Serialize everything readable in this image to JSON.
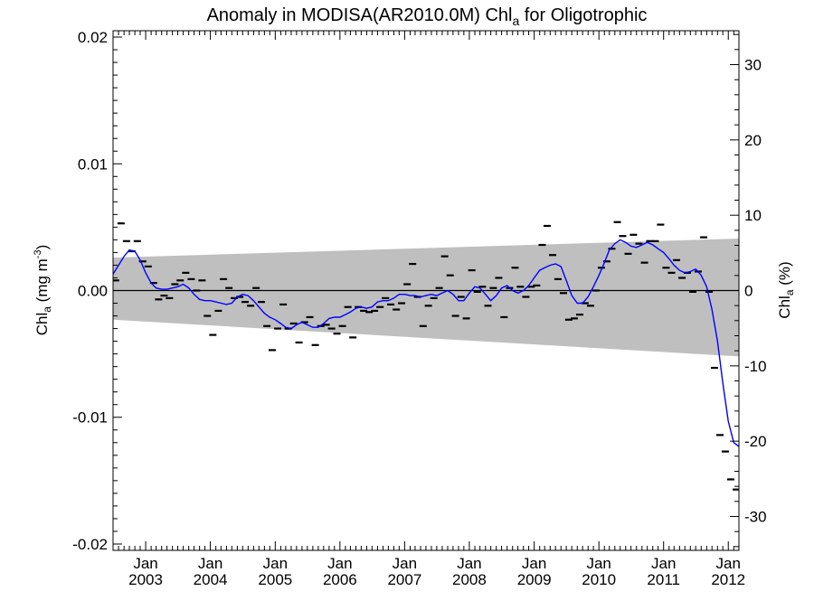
{
  "chart_data": {
    "type": "scatter",
    "title": {
      "main": "Anomaly in MODISA(AR2010.0M) Chl",
      "sub": "a",
      "tail": " for Oligotrophic"
    },
    "ylabel_left": {
      "main": "Chl",
      "sub": "a",
      "tail": " (mg m",
      "sup": "-3",
      "close": ")"
    },
    "ylabel_right": {
      "main": "Chl",
      "sub": "a",
      "tail": " (%)"
    },
    "ylim": [
      -0.0205,
      0.0205
    ],
    "ylim_right": [
      -34.5,
      34.5
    ],
    "xlim": [
      "2002-07-01",
      "2012-03-01"
    ],
    "y_ticks_left": [
      {
        "value": 0.02,
        "label": "0.02"
      },
      {
        "value": 0.01,
        "label": "0.01"
      },
      {
        "value": 0.0,
        "label": "0.00"
      },
      {
        "value": -0.01,
        "label": "-0.01"
      },
      {
        "value": -0.02,
        "label": "-0.02"
      }
    ],
    "y_ticks_right": [
      {
        "value": 30,
        "label": "30"
      },
      {
        "value": 20,
        "label": "20"
      },
      {
        "value": 10,
        "label": "10"
      },
      {
        "value": 0,
        "label": "0"
      },
      {
        "value": -10,
        "label": "-10"
      },
      {
        "value": -20,
        "label": "-20"
      },
      {
        "value": -30,
        "label": "-30"
      }
    ],
    "x_ticks": [
      {
        "date": "2003-01-01",
        "month": "Jan",
        "year": "2003"
      },
      {
        "date": "2004-01-01",
        "month": "Jan",
        "year": "2004"
      },
      {
        "date": "2005-01-01",
        "month": "Jan",
        "year": "2005"
      },
      {
        "date": "2006-01-01",
        "month": "Jan",
        "year": "2006"
      },
      {
        "date": "2007-01-01",
        "month": "Jan",
        "year": "2007"
      },
      {
        "date": "2008-01-01",
        "month": "Jan",
        "year": "2008"
      },
      {
        "date": "2009-01-01",
        "month": "Jan",
        "year": "2009"
      },
      {
        "date": "2010-01-01",
        "month": "Jan",
        "year": "2010"
      },
      {
        "date": "2011-01-01",
        "month": "Jan",
        "year": "2011"
      },
      {
        "date": "2012-01-01",
        "month": "Jan",
        "year": "2012"
      }
    ],
    "grid": false,
    "zero_line": 0,
    "band": {
      "color": "#bfbfbf",
      "start": {
        "date": "2002-07-01",
        "lower": -0.0023,
        "upper": 0.0026
      },
      "end": {
        "date": "2012-03-01",
        "lower": -0.0052,
        "upper": 0.0041
      }
    },
    "monthly_points": {
      "color": "#000000",
      "dates": [
        "2002-07-15",
        "2002-08-15",
        "2002-09-15",
        "2002-10-15",
        "2002-11-15",
        "2002-12-15",
        "2003-01-15",
        "2003-02-15",
        "2003-03-15",
        "2003-04-15",
        "2003-05-15",
        "2003-06-15",
        "2003-07-15",
        "2003-08-15",
        "2003-09-15",
        "2003-10-15",
        "2003-11-15",
        "2003-12-15",
        "2004-01-15",
        "2004-02-15",
        "2004-03-15",
        "2004-04-15",
        "2004-05-15",
        "2004-06-15",
        "2004-07-15",
        "2004-08-15",
        "2004-09-15",
        "2004-10-15",
        "2004-11-15",
        "2004-12-15",
        "2005-01-15",
        "2005-02-15",
        "2005-03-15",
        "2005-04-15",
        "2005-05-15",
        "2005-06-15",
        "2005-07-15",
        "2005-08-15",
        "2005-09-15",
        "2005-10-15",
        "2005-11-15",
        "2005-12-15",
        "2006-01-15",
        "2006-02-15",
        "2006-03-15",
        "2006-04-15",
        "2006-05-15",
        "2006-06-15",
        "2006-07-15",
        "2006-08-15",
        "2006-09-15",
        "2006-10-15",
        "2006-11-15",
        "2006-12-15",
        "2007-01-15",
        "2007-02-15",
        "2007-03-15",
        "2007-04-15",
        "2007-05-15",
        "2007-06-15",
        "2007-07-15",
        "2007-08-15",
        "2007-09-15",
        "2007-10-15",
        "2007-11-15",
        "2007-12-15",
        "2008-01-15",
        "2008-02-15",
        "2008-03-15",
        "2008-04-15",
        "2008-05-15",
        "2008-06-15",
        "2008-07-15",
        "2008-08-15",
        "2008-09-15",
        "2008-10-15",
        "2008-11-15",
        "2008-12-15",
        "2009-01-15",
        "2009-02-15",
        "2009-03-15",
        "2009-04-15",
        "2009-05-15",
        "2009-06-15",
        "2009-07-15",
        "2009-08-15",
        "2009-09-15",
        "2009-10-15",
        "2009-11-15",
        "2009-12-15",
        "2010-01-15",
        "2010-02-15",
        "2010-03-15",
        "2010-04-15",
        "2010-05-15",
        "2010-06-15",
        "2010-07-15",
        "2010-08-15",
        "2010-09-15",
        "2010-10-15",
        "2010-11-15",
        "2010-12-15",
        "2011-01-15",
        "2011-02-15",
        "2011-03-15",
        "2011-04-15",
        "2011-05-15",
        "2011-06-15",
        "2011-07-15",
        "2011-08-15",
        "2011-09-15",
        "2011-10-15",
        "2011-11-15",
        "2011-12-15",
        "2012-01-15",
        "2012-02-15"
      ],
      "values": [
        0.0008,
        0.0053,
        0.0039,
        0.0031,
        0.0039,
        0.0023,
        0.0019,
        0.0006,
        -0.0007,
        -0.0004,
        -0.0006,
        0.0005,
        0.0008,
        0.0014,
        0.0009,
        0.0,
        0.0008,
        -0.002,
        -0.0035,
        -0.0016,
        0.0009,
        0.0002,
        -0.0006,
        -0.0005,
        -0.0009,
        -0.0012,
        0.0002,
        -0.0009,
        -0.0028,
        -0.0047,
        -0.003,
        -0.0011,
        -0.003,
        -0.0026,
        -0.0041,
        -0.0025,
        -0.0021,
        -0.0043,
        -0.0028,
        -0.0027,
        -0.003,
        -0.0034,
        -0.0028,
        -0.0013,
        -0.0037,
        -0.0013,
        -0.0016,
        -0.0017,
        -0.0016,
        -0.0013,
        -0.0006,
        -0.0011,
        -0.0015,
        -0.001,
        0.0005,
        0.0021,
        -0.0005,
        -0.0028,
        -0.0012,
        -0.0006,
        0.0002,
        0.0027,
        0.0012,
        -0.002,
        -0.0005,
        -0.0022,
        0.0016,
        -0.0001,
        0.0003,
        -0.0012,
        0.0002,
        0.001,
        -0.0021,
        0.0002,
        0.0018,
        0.0003,
        -0.0005,
        0.0003,
        0.0004,
        0.0036,
        0.0051,
        0.0028,
        0.0009,
        -0.0002,
        -0.0023,
        -0.0022,
        -0.0019,
        -0.001,
        -0.0012,
        0.0,
        0.0018,
        0.0023,
        0.0033,
        0.0054,
        0.0043,
        0.0029,
        0.0044,
        0.0037,
        0.0022,
        0.0039,
        0.0039,
        0.0052,
        0.0018,
        0.0014,
        0.0024,
        0.001,
        0.0014,
        -0.0001,
        0.0015,
        0.0042,
        -0.0001,
        -0.0061,
        -0.0114,
        -0.0127,
        -0.0149,
        -0.0157
      ]
    },
    "smoothed_line": {
      "color": "#0000ff",
      "dates": [
        "2002-07-01",
        "2002-08-01",
        "2002-09-01",
        "2002-10-01",
        "2002-11-01",
        "2002-12-01",
        "2003-01-01",
        "2003-02-01",
        "2003-03-01",
        "2003-04-01",
        "2003-05-01",
        "2003-06-01",
        "2003-07-01",
        "2003-08-01",
        "2003-09-01",
        "2003-10-01",
        "2003-11-01",
        "2003-12-01",
        "2004-01-01",
        "2004-02-01",
        "2004-03-01",
        "2004-04-01",
        "2004-05-01",
        "2004-06-01",
        "2004-07-01",
        "2004-08-01",
        "2004-09-01",
        "2004-10-01",
        "2004-11-01",
        "2004-12-01",
        "2005-01-01",
        "2005-02-01",
        "2005-03-01",
        "2005-04-01",
        "2005-05-01",
        "2005-06-01",
        "2005-07-01",
        "2005-08-01",
        "2005-09-01",
        "2005-10-01",
        "2005-11-01",
        "2005-12-01",
        "2006-01-01",
        "2006-02-01",
        "2006-03-01",
        "2006-04-01",
        "2006-05-01",
        "2006-06-01",
        "2006-07-01",
        "2006-08-01",
        "2006-09-01",
        "2006-10-01",
        "2006-11-01",
        "2006-12-01",
        "2007-01-01",
        "2007-02-01",
        "2007-03-01",
        "2007-04-01",
        "2007-05-01",
        "2007-06-01",
        "2007-07-01",
        "2007-08-01",
        "2007-09-01",
        "2007-10-01",
        "2007-11-01",
        "2007-12-01",
        "2008-01-01",
        "2008-02-01",
        "2008-03-01",
        "2008-04-01",
        "2008-05-01",
        "2008-06-01",
        "2008-07-01",
        "2008-08-01",
        "2008-09-01",
        "2008-10-01",
        "2008-11-01",
        "2008-12-01",
        "2009-01-01",
        "2009-02-01",
        "2009-03-01",
        "2009-04-01",
        "2009-05-01",
        "2009-06-01",
        "2009-07-01",
        "2009-08-01",
        "2009-09-01",
        "2009-10-01",
        "2009-11-01",
        "2009-12-01",
        "2010-01-01",
        "2010-02-01",
        "2010-03-01",
        "2010-04-01",
        "2010-05-01",
        "2010-06-01",
        "2010-07-01",
        "2010-08-01",
        "2010-09-01",
        "2010-10-01",
        "2010-11-01",
        "2010-12-01",
        "2011-01-01",
        "2011-02-01",
        "2011-03-01",
        "2011-04-01",
        "2011-05-01",
        "2011-06-01",
        "2011-07-01",
        "2011-08-01",
        "2011-09-01",
        "2011-10-01",
        "2011-11-01",
        "2011-12-01",
        "2012-01-01",
        "2012-02-01",
        "2012-03-01"
      ],
      "values": [
        0.0013,
        0.002,
        0.0027,
        0.0032,
        0.0031,
        0.0024,
        0.0014,
        0.0006,
        0.0002,
        0.0001,
        0.0001,
        0.0002,
        0.0003,
        0.0005,
        0.0002,
        -0.0003,
        -0.0007,
        -0.0008,
        -0.0008,
        -0.0009,
        -0.001,
        -0.0011,
        -0.001,
        -0.0005,
        -0.0003,
        -0.0004,
        -0.0008,
        -0.0013,
        -0.0018,
        -0.0021,
        -0.0023,
        -0.0026,
        -0.0029,
        -0.003,
        -0.0027,
        -0.0025,
        -0.0027,
        -0.0029,
        -0.0029,
        -0.0026,
        -0.0022,
        -0.0021,
        -0.0021,
        -0.0019,
        -0.0017,
        -0.0014,
        -0.0013,
        -0.0014,
        -0.0013,
        -0.0009,
        -0.0008,
        -0.0008,
        -0.0006,
        -0.0003,
        -0.0003,
        -0.0004,
        -0.0004,
        -0.0005,
        -0.0004,
        -0.0003,
        -0.0004,
        -0.0002,
        0.0,
        -0.0003,
        -0.0008,
        -0.0008,
        -0.0002,
        0.0003,
        0.0002,
        -0.0003,
        -0.0008,
        -0.0004,
        0.0002,
        0.0004,
        0.0,
        -0.0002,
        0.0,
        0.0004,
        0.001,
        0.0016,
        0.0018,
        0.002,
        0.0021,
        0.0019,
        0.0008,
        -0.0004,
        -0.001,
        -0.001,
        -0.0005,
        0.0003,
        0.0012,
        0.0022,
        0.0032,
        0.0037,
        0.004,
        0.0038,
        0.0035,
        0.0034,
        0.0036,
        0.0038,
        0.0036,
        0.0033,
        0.003,
        0.0025,
        0.002,
        0.0016,
        0.0014,
        0.0015,
        0.0017,
        0.0012,
        0.0003,
        -0.0015,
        -0.004,
        -0.0073,
        -0.0103,
        -0.012,
        -0.0123
      ]
    }
  }
}
